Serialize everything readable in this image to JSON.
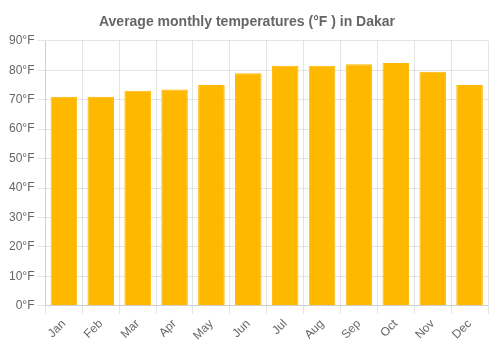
{
  "chart_data": {
    "type": "bar",
    "title": "Average monthly temperatures (°F ) in Dakar",
    "categories": [
      "Jan",
      "Feb",
      "Mar",
      "Apr",
      "May",
      "Jun",
      "Jul",
      "Aug",
      "Sep",
      "Oct",
      "Nov",
      "Dec"
    ],
    "values": [
      71,
      71,
      73,
      73.5,
      75,
      79,
      81.5,
      81.5,
      82,
      82.5,
      79.5,
      75
    ],
    "color": "#FFB800",
    "ylim": [
      0,
      90
    ],
    "yticks": [
      {
        "value": 0,
        "label": "0°F"
      },
      {
        "value": 10,
        "label": "10°F"
      },
      {
        "value": 20,
        "label": "20°F"
      },
      {
        "value": 30,
        "label": "30°F"
      },
      {
        "value": 40,
        "label": "40°F"
      },
      {
        "value": 50,
        "label": "50°F"
      },
      {
        "value": 60,
        "label": "60°F"
      },
      {
        "value": 70,
        "label": "70°F"
      },
      {
        "value": 80,
        "label": "80°F"
      },
      {
        "value": 90,
        "label": "90°F"
      }
    ],
    "grid": true
  }
}
